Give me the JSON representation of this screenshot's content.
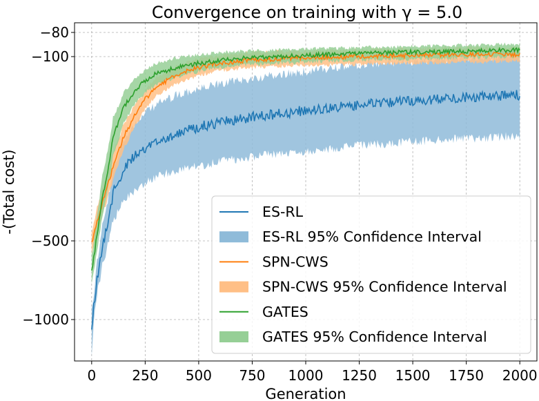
{
  "chart_data": {
    "type": "line",
    "title": "Convergence on training with γ = 5.0",
    "xlabel": "Generation",
    "ylabel": "-(Total cost)",
    "xlim": [
      -80,
      2080
    ],
    "ylim": [
      -1150,
      -65
    ],
    "y_scale": "symlog (compressed)",
    "x_ticks": [
      0,
      250,
      500,
      750,
      1000,
      1250,
      1500,
      1750,
      2000
    ],
    "x_tick_labels": [
      "0",
      "250",
      "500",
      "750",
      "1000",
      "1250",
      "1500",
      "1750",
      "2000"
    ],
    "y_ticks": [
      -80,
      -100,
      -500,
      -1000
    ],
    "y_tick_labels": [
      "−80",
      "−100",
      "−500",
      "−1000"
    ],
    "grid": true,
    "legend_position": "lower-right",
    "series": [
      {
        "name": "ES-RL",
        "ci_label": "ES-RL 95% Confidence Interval",
        "color": "#1f77b4",
        "ci_color": "#8fbbd9",
        "x": [
          0,
          25,
          50,
          100,
          150,
          200,
          250,
          300,
          400,
          500,
          600,
          750,
          1000,
          1250,
          1500,
          1750,
          2000
        ],
        "y": [
          -1020,
          -700,
          -520,
          -330,
          -265,
          -240,
          -225,
          -210,
          -195,
          -185,
          -178,
          -170,
          -160,
          -153,
          -147,
          -143,
          -140
        ],
        "ci_low": [
          -1120,
          -800,
          -620,
          -420,
          -355,
          -320,
          -300,
          -285,
          -270,
          -260,
          -250,
          -240,
          -228,
          -218,
          -210,
          -205,
          -200
        ],
        "ci_high": [
          -920,
          -600,
          -440,
          -270,
          -205,
          -180,
          -165,
          -152,
          -140,
          -133,
          -127,
          -121,
          -114,
          -108,
          -104,
          -101,
          -99
        ]
      },
      {
        "name": "SPN-CWS",
        "ci_label": "SPN-CWS 95% Confidence Interval",
        "color": "#ff7f0e",
        "ci_color": "#ffbf86",
        "x": [
          0,
          25,
          50,
          100,
          150,
          200,
          250,
          300,
          400,
          500,
          600,
          750,
          1000,
          1250,
          1500,
          1750,
          2000
        ],
        "y": [
          -510,
          -420,
          -360,
          -260,
          -200,
          -168,
          -145,
          -130,
          -117,
          -110,
          -106,
          -103,
          -101,
          -100,
          -99,
          -98,
          -98
        ],
        "ci_low": [
          -560,
          -465,
          -400,
          -292,
          -222,
          -185,
          -158,
          -141,
          -126,
          -118,
          -113,
          -110,
          -108,
          -107,
          -106,
          -105,
          -104
        ],
        "ci_high": [
          -460,
          -375,
          -320,
          -230,
          -180,
          -153,
          -134,
          -120,
          -108,
          -102,
          -99,
          -96,
          -95,
          -94,
          -93,
          -92,
          -92
        ]
      },
      {
        "name": "GATES",
        "ci_label": "GATES 95% Confidence Interval",
        "color": "#2ca02c",
        "ci_color": "#96cf96",
        "x": [
          0,
          25,
          50,
          100,
          150,
          200,
          250,
          300,
          400,
          500,
          600,
          750,
          1000,
          1250,
          1500,
          1750,
          2000
        ],
        "y": [
          -650,
          -470,
          -340,
          -200,
          -155,
          -135,
          -123,
          -116,
          -110,
          -106,
          -103,
          -101,
          -99,
          -97,
          -96,
          -95,
          -94
        ],
        "ci_low": [
          -730,
          -540,
          -400,
          -240,
          -178,
          -152,
          -137,
          -128,
          -119,
          -114,
          -110,
          -107,
          -105,
          -103,
          -102,
          -101,
          -100
        ],
        "ci_high": [
          -570,
          -400,
          -280,
          -170,
          -137,
          -121,
          -112,
          -106,
          -101,
          -98,
          -96,
          -95,
          -93,
          -92,
          -91,
          -90,
          -89
        ]
      }
    ],
    "legend_entries": [
      "ES-RL",
      "ES-RL 95% Confidence Interval",
      "SPN-CWS",
      "SPN-CWS 95% Confidence Interval",
      "GATES",
      "GATES 95% Confidence Interval"
    ]
  }
}
